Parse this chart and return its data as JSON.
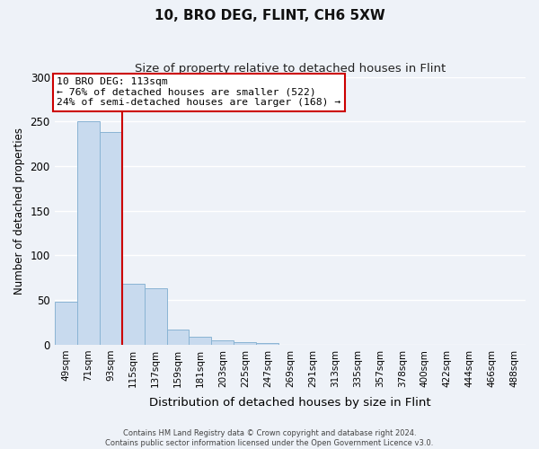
{
  "title": "10, BRO DEG, FLINT, CH6 5XW",
  "subtitle": "Size of property relative to detached houses in Flint",
  "xlabel": "Distribution of detached houses by size in Flint",
  "ylabel": "Number of detached properties",
  "bar_color": "#c8daee",
  "bar_edge_color": "#8ab4d4",
  "bar_heights": [
    48,
    250,
    238,
    68,
    63,
    17,
    9,
    5,
    3,
    2,
    0,
    0,
    0,
    0,
    0,
    0,
    0,
    0,
    0,
    0,
    0
  ],
  "bin_labels": [
    "49sqm",
    "71sqm",
    "93sqm",
    "115sqm",
    "137sqm",
    "159sqm",
    "181sqm",
    "203sqm",
    "225sqm",
    "247sqm",
    "269sqm",
    "291sqm",
    "313sqm",
    "335sqm",
    "357sqm",
    "378sqm",
    "400sqm",
    "422sqm",
    "444sqm",
    "466sqm",
    "488sqm"
  ],
  "vline_color": "#cc0000",
  "annotation_line1": "10 BRO DEG: 113sqm",
  "annotation_line2": "← 76% of detached houses are smaller (522)",
  "annotation_line3": "24% of semi-detached houses are larger (168) →",
  "annotation_box_color": "#ffffff",
  "annotation_box_edge_color": "#cc0000",
  "ylim": [
    0,
    300
  ],
  "yticks": [
    0,
    50,
    100,
    150,
    200,
    250,
    300
  ],
  "footnote_line1": "Contains HM Land Registry data © Crown copyright and database right 2024.",
  "footnote_line2": "Contains public sector information licensed under the Open Government Licence v3.0.",
  "bg_color": "#eef2f8",
  "grid_color": "#ffffff",
  "title_fontsize": 11,
  "subtitle_fontsize": 9.5
}
